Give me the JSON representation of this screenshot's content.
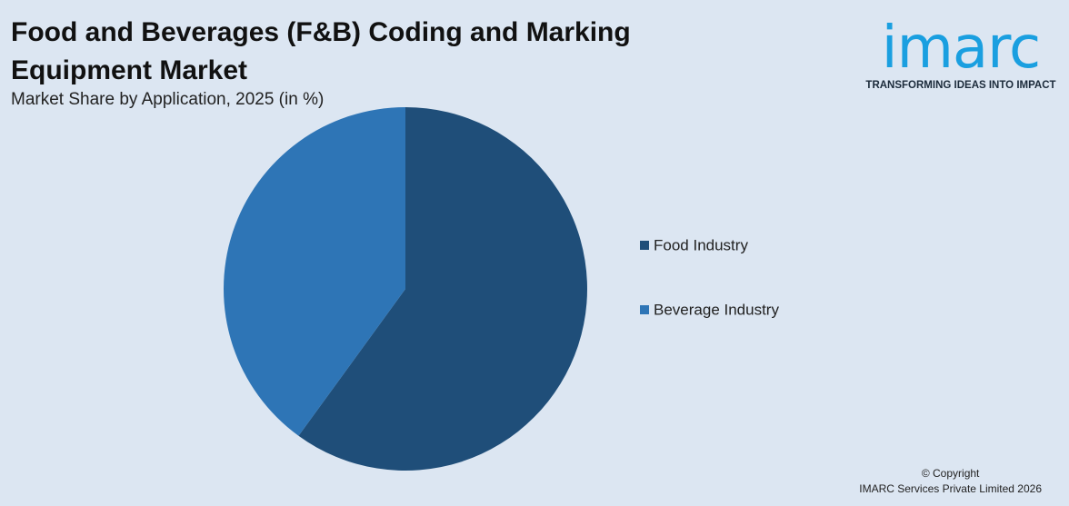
{
  "chart_data": {
    "type": "pie",
    "title": "Food and Beverages (F&B) Coding and Marking Equipment Market",
    "subtitle": "Market Share by Application, 2025 (in %)",
    "categories": [
      "Food Industry",
      "Beverage Industry"
    ],
    "values": [
      60,
      40
    ],
    "colors": [
      "#1f4e79",
      "#2e75b6"
    ]
  },
  "logo": {
    "name": "imarc",
    "tagline": "TRANSFORMING IDEAS INTO IMPACT"
  },
  "footer": {
    "copyright": "© Copyright",
    "company": "IMARC Services Private Limited 2026"
  }
}
